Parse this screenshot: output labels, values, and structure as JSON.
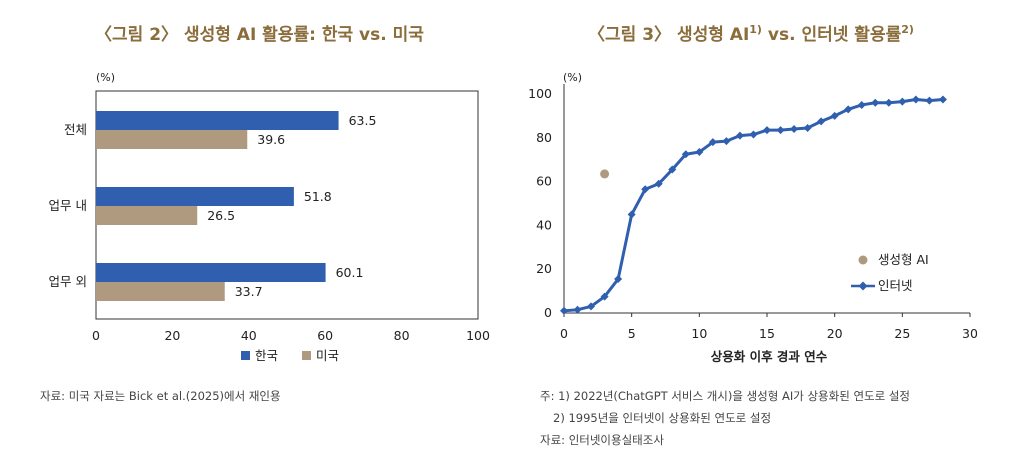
{
  "left": {
    "title": "〈그림 2〉 생성형 AI 활용률: 한국 vs. 미국",
    "unit": "(%)",
    "legend": {
      "korea": "한국",
      "usa": "미국"
    },
    "note": "자료: 미국 자료는 Bick et al.(2025)에서 재인용"
  },
  "right": {
    "title_main": "〈그림 3〉 생성형 AI",
    "title_sup1": "1)",
    "title_mid": " vs. 인터넷 활용률",
    "title_sup2": "2)",
    "unit": "(%)",
    "legend": {
      "genai": "생성형 AI",
      "internet": "인터넷"
    },
    "notes": [
      "주: 1) 2022년(ChatGPT 서비스 개시)을 생성형 AI가 상용화된 연도로 설정",
      "2) 1995년을 인터넷이 상용화된 연도로 설정",
      "자료: 인터넷이용실태조사"
    ]
  },
  "chart_data": [
    {
      "type": "bar",
      "orientation": "horizontal",
      "title": "〈그림 2〉 생성형 AI 활용률: 한국 vs. 미국",
      "categories": [
        "전체",
        "업무 내",
        "업무 외"
      ],
      "series": [
        {
          "name": "한국",
          "values": [
            63.5,
            51.8,
            60.1
          ],
          "color": "#2f5fae"
        },
        {
          "name": "미국",
          "values": [
            39.6,
            26.5,
            33.7
          ],
          "color": "#b09a7f"
        }
      ],
      "xlim": [
        0,
        100
      ],
      "xticks": [
        0,
        20,
        40,
        60,
        80,
        100
      ],
      "value_labels": {
        "한국": [
          "63.5",
          "51.8",
          "60.1"
        ],
        "미국": [
          "39.6",
          "26.5",
          "33.7"
        ]
      },
      "legend": "bottom",
      "grid": false
    },
    {
      "type": "line",
      "title": "〈그림 3〉 생성형 AI vs. 인터넷 활용률",
      "xlabel": "상용화 이후 경과 연수",
      "xlim": [
        0,
        30
      ],
      "ylim": [
        0,
        100
      ],
      "xticks": [
        0,
        5,
        10,
        15,
        20,
        25,
        30
      ],
      "yticks": [
        0,
        20,
        40,
        60,
        80,
        100
      ],
      "series": [
        {
          "name": "인터넷",
          "color": "#2f5fae",
          "marker": "diamond",
          "x": [
            0,
            1,
            2,
            3,
            4,
            5,
            6,
            7,
            8,
            9,
            10,
            11,
            12,
            13,
            14,
            15,
            16,
            17,
            18,
            19,
            20,
            21,
            22,
            23,
            24,
            25,
            26,
            27,
            28
          ],
          "y": [
            1,
            1.5,
            3,
            7.5,
            15.5,
            45,
            56.5,
            59,
            65.5,
            72.5,
            73.5,
            78,
            78.5,
            81,
            81.5,
            83.5,
            83.5,
            84,
            84.5,
            87.5,
            90,
            93,
            95,
            96,
            96,
            96.5,
            97.5,
            97,
            97.5
          ]
        },
        {
          "name": "생성형 AI",
          "color": "#b09a7f",
          "marker": "circle",
          "x": [
            3
          ],
          "y": [
            63.5
          ]
        }
      ],
      "legend": "right-middle",
      "grid": false
    }
  ]
}
